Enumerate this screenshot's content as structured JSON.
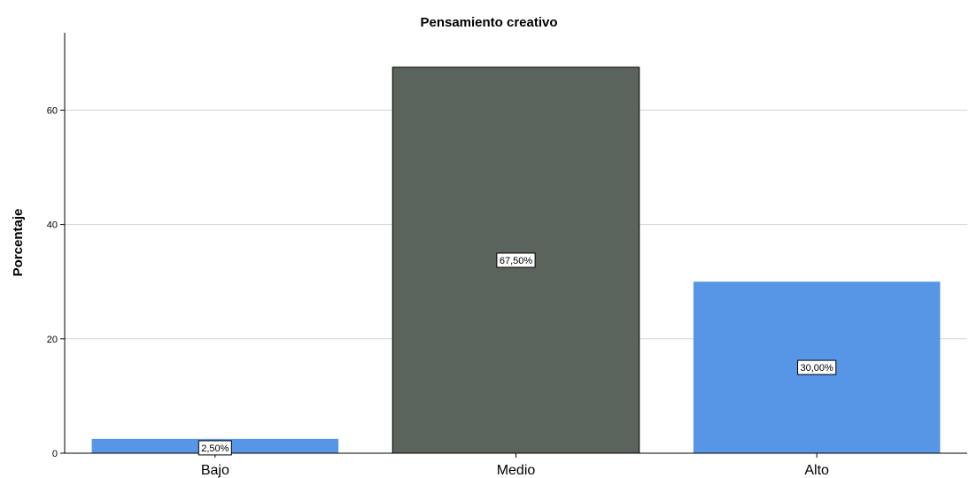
{
  "chart_data": {
    "type": "bar",
    "title": "Pensamiento creativo",
    "xlabel": "",
    "ylabel": "Porcentaje",
    "categories": [
      "Bajo",
      "Medio",
      "Alto"
    ],
    "values": [
      2.5,
      67.5,
      30.0
    ],
    "data_labels": [
      "2,50%",
      "67,50%",
      "30,00%"
    ],
    "bar_colors": [
      "#5796e6",
      "#5a635c",
      "#5796e6"
    ],
    "ylim": [
      0,
      73
    ],
    "yticks": [
      0,
      20,
      40,
      60
    ],
    "grid": true,
    "legend": "none"
  }
}
